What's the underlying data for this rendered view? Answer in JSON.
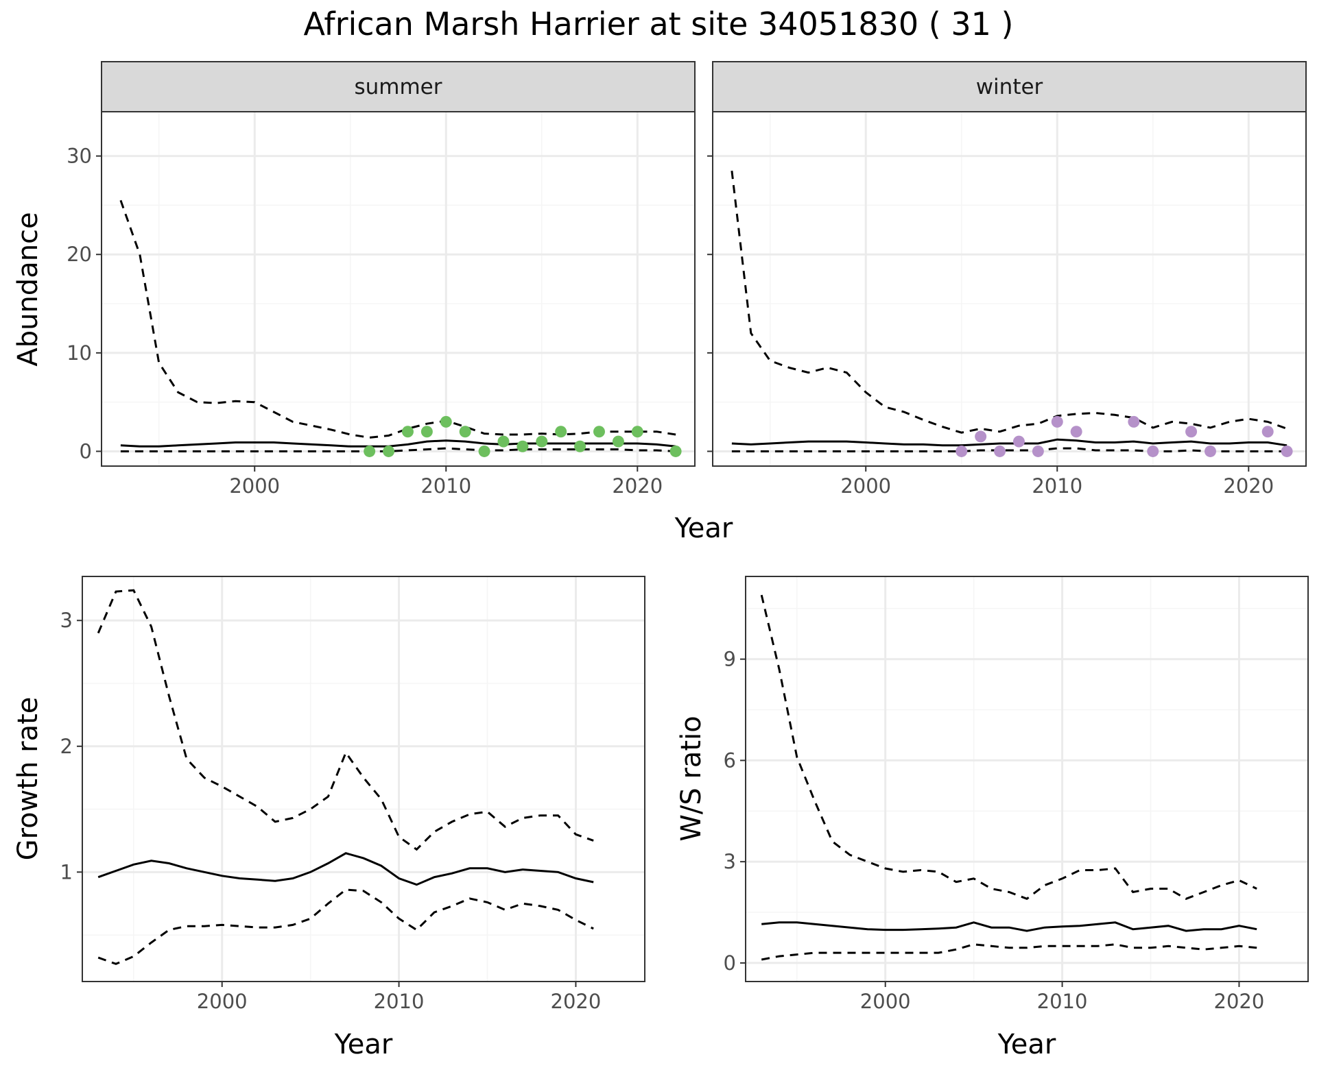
{
  "title": "African Marsh Harrier at site 34051830 ( 31 )",
  "colors": {
    "summer_points": "#6dbf5e",
    "winter_points": "#b591c9",
    "line": "#000000",
    "strip_fill": "#d9d9d9",
    "grid_major": "#ebebeb",
    "grid_minor": "#f5f5f5"
  },
  "chart_data": [
    {
      "type": "line",
      "panel": "abundance",
      "xlabel": "Year",
      "ylabel": "Abundance",
      "xlim": [
        1992,
        2023
      ],
      "ylim": [
        -1.5,
        34.5
      ],
      "xticks": [
        2000,
        2010,
        2020
      ],
      "yticks": [
        0,
        10,
        20,
        30
      ],
      "facets": [
        {
          "strip": "summer",
          "years": [
            1993,
            1994,
            1995,
            1996,
            1997,
            1998,
            1999,
            2000,
            2001,
            2002,
            2003,
            2004,
            2005,
            2006,
            2007,
            2008,
            2009,
            2010,
            2011,
            2012,
            2013,
            2014,
            2015,
            2016,
            2017,
            2018,
            2019,
            2020,
            2021,
            2022
          ],
          "mean": [
            0.6,
            0.5,
            0.5,
            0.6,
            0.7,
            0.8,
            0.9,
            0.9,
            0.9,
            0.8,
            0.7,
            0.6,
            0.5,
            0.5,
            0.5,
            0.7,
            1.0,
            1.1,
            1.0,
            0.8,
            0.7,
            0.8,
            0.8,
            0.8,
            0.8,
            0.8,
            0.8,
            0.8,
            0.7,
            0.5
          ],
          "upper": [
            25.5,
            20.0,
            9.0,
            6.0,
            5.0,
            4.9,
            5.1,
            5.0,
            4.0,
            3.0,
            2.6,
            2.2,
            1.7,
            1.4,
            1.6,
            2.3,
            2.8,
            3.1,
            2.5,
            1.8,
            1.7,
            1.7,
            1.8,
            1.7,
            1.8,
            2.0,
            2.0,
            2.0,
            2.0,
            1.7
          ],
          "lower": [
            0,
            0,
            0,
            0,
            0,
            0,
            0,
            0,
            0,
            0,
            0,
            0,
            0,
            0,
            0,
            0.1,
            0.2,
            0.3,
            0.2,
            0.1,
            0.1,
            0.2,
            0.2,
            0.2,
            0.2,
            0.2,
            0.2,
            0.1,
            0.1,
            0
          ],
          "points": {
            "years": [
              2006,
              2007,
              2008,
              2009,
              2010,
              2011,
              2012,
              2013,
              2014,
              2015,
              2016,
              2017,
              2018,
              2019,
              2020,
              2022
            ],
            "values": [
              0,
              0,
              2,
              2,
              3,
              2,
              0,
              1,
              0.5,
              1,
              2,
              0.5,
              2,
              1,
              2,
              0
            ]
          }
        },
        {
          "strip": "winter",
          "years": [
            1993,
            1994,
            1995,
            1996,
            1997,
            1998,
            1999,
            2000,
            2001,
            2002,
            2003,
            2004,
            2005,
            2006,
            2007,
            2008,
            2009,
            2010,
            2011,
            2012,
            2013,
            2014,
            2015,
            2016,
            2017,
            2018,
            2019,
            2020,
            2021,
            2022
          ],
          "mean": [
            0.8,
            0.7,
            0.8,
            0.9,
            1.0,
            1.0,
            1.0,
            0.9,
            0.8,
            0.7,
            0.7,
            0.6,
            0.6,
            0.7,
            0.8,
            0.8,
            0.8,
            1.2,
            1.1,
            0.9,
            0.9,
            1.0,
            0.8,
            0.9,
            1.0,
            0.8,
            0.8,
            0.9,
            0.9,
            0.6
          ],
          "upper": [
            28.5,
            12.0,
            9.2,
            8.5,
            8.0,
            8.5,
            8.0,
            6.0,
            4.5,
            4.0,
            3.2,
            2.5,
            1.9,
            2.3,
            2.0,
            2.6,
            2.8,
            3.6,
            3.8,
            3.9,
            3.7,
            3.4,
            2.4,
            3.0,
            2.8,
            2.4,
            3.0,
            3.3,
            3.0,
            2.3
          ],
          "lower": [
            0,
            0,
            0,
            0,
            0,
            0,
            0,
            0,
            0,
            0,
            0,
            0,
            0,
            0.1,
            0.1,
            0.1,
            0.1,
            0.3,
            0.3,
            0.1,
            0.1,
            0.1,
            0,
            0,
            0.1,
            0,
            0,
            0,
            0,
            0
          ],
          "points": {
            "years": [
              2005,
              2006,
              2007,
              2008,
              2009,
              2010,
              2011,
              2014,
              2015,
              2017,
              2018,
              2021,
              2022
            ],
            "values": [
              0,
              1.5,
              0,
              1,
              0,
              3,
              2,
              3,
              0,
              2,
              0,
              2,
              0
            ]
          }
        }
      ]
    },
    {
      "type": "line",
      "panel": "growth",
      "xlabel": "Year",
      "ylabel": "Growth rate",
      "xlim": [
        1992.1,
        2023.9
      ],
      "ylim": [
        0.13,
        3.35
      ],
      "xticks": [
        2000,
        2010,
        2020
      ],
      "yticks": [
        1,
        2,
        3
      ],
      "years": [
        1993,
        1994,
        1995,
        1996,
        1997,
        1998,
        1999,
        2000,
        2001,
        2002,
        2003,
        2004,
        2005,
        2006,
        2007,
        2008,
        2009,
        2010,
        2011,
        2012,
        2013,
        2014,
        2015,
        2016,
        2017,
        2018,
        2019,
        2020,
        2021
      ],
      "mean": [
        0.96,
        1.01,
        1.06,
        1.09,
        1.07,
        1.03,
        1.0,
        0.97,
        0.95,
        0.94,
        0.93,
        0.95,
        1.0,
        1.07,
        1.15,
        1.11,
        1.05,
        0.95,
        0.9,
        0.96,
        0.99,
        1.03,
        1.03,
        1.0,
        1.02,
        1.01,
        1.0,
        0.95,
        0.92
      ],
      "upper": [
        2.9,
        3.23,
        3.24,
        2.95,
        2.4,
        1.9,
        1.75,
        1.68,
        1.6,
        1.52,
        1.4,
        1.43,
        1.5,
        1.6,
        1.95,
        1.75,
        1.58,
        1.28,
        1.18,
        1.32,
        1.4,
        1.46,
        1.48,
        1.36,
        1.43,
        1.45,
        1.45,
        1.3,
        1.25
      ],
      "lower": [
        0.32,
        0.27,
        0.33,
        0.44,
        0.54,
        0.57,
        0.57,
        0.58,
        0.57,
        0.56,
        0.56,
        0.58,
        0.63,
        0.75,
        0.86,
        0.85,
        0.76,
        0.63,
        0.54,
        0.68,
        0.73,
        0.79,
        0.76,
        0.7,
        0.75,
        0.73,
        0.7,
        0.62,
        0.55
      ]
    },
    {
      "type": "line",
      "panel": "ratio",
      "xlabel": "Year",
      "ylabel": "W/S ratio",
      "xlim": [
        1992.1,
        2023.9
      ],
      "ylim": [
        -0.55,
        11.45
      ],
      "xticks": [
        2000,
        2010,
        2020
      ],
      "yticks": [
        0,
        3,
        6,
        9
      ],
      "years": [
        1993,
        1994,
        1995,
        1996,
        1997,
        1998,
        1999,
        2000,
        2001,
        2002,
        2003,
        2004,
        2005,
        2006,
        2007,
        2008,
        2009,
        2010,
        2011,
        2012,
        2013,
        2014,
        2015,
        2016,
        2017,
        2018,
        2019,
        2020,
        2021
      ],
      "mean": [
        1.15,
        1.2,
        1.2,
        1.15,
        1.1,
        1.05,
        1.0,
        0.98,
        0.98,
        1.0,
        1.02,
        1.05,
        1.2,
        1.05,
        1.05,
        0.95,
        1.05,
        1.08,
        1.1,
        1.15,
        1.2,
        1.0,
        1.05,
        1.1,
        0.95,
        1.0,
        1.0,
        1.1,
        1.0
      ],
      "upper": [
        10.9,
        8.7,
        6.1,
        4.8,
        3.6,
        3.2,
        3.0,
        2.8,
        2.7,
        2.75,
        2.7,
        2.4,
        2.5,
        2.2,
        2.1,
        1.9,
        2.3,
        2.5,
        2.75,
        2.75,
        2.8,
        2.1,
        2.2,
        2.2,
        1.9,
        2.1,
        2.3,
        2.45,
        2.2
      ],
      "lower": [
        0.1,
        0.2,
        0.25,
        0.3,
        0.3,
        0.3,
        0.3,
        0.3,
        0.3,
        0.3,
        0.3,
        0.4,
        0.55,
        0.5,
        0.45,
        0.45,
        0.5,
        0.5,
        0.5,
        0.5,
        0.55,
        0.45,
        0.45,
        0.5,
        0.45,
        0.4,
        0.45,
        0.5,
        0.45
      ]
    }
  ]
}
